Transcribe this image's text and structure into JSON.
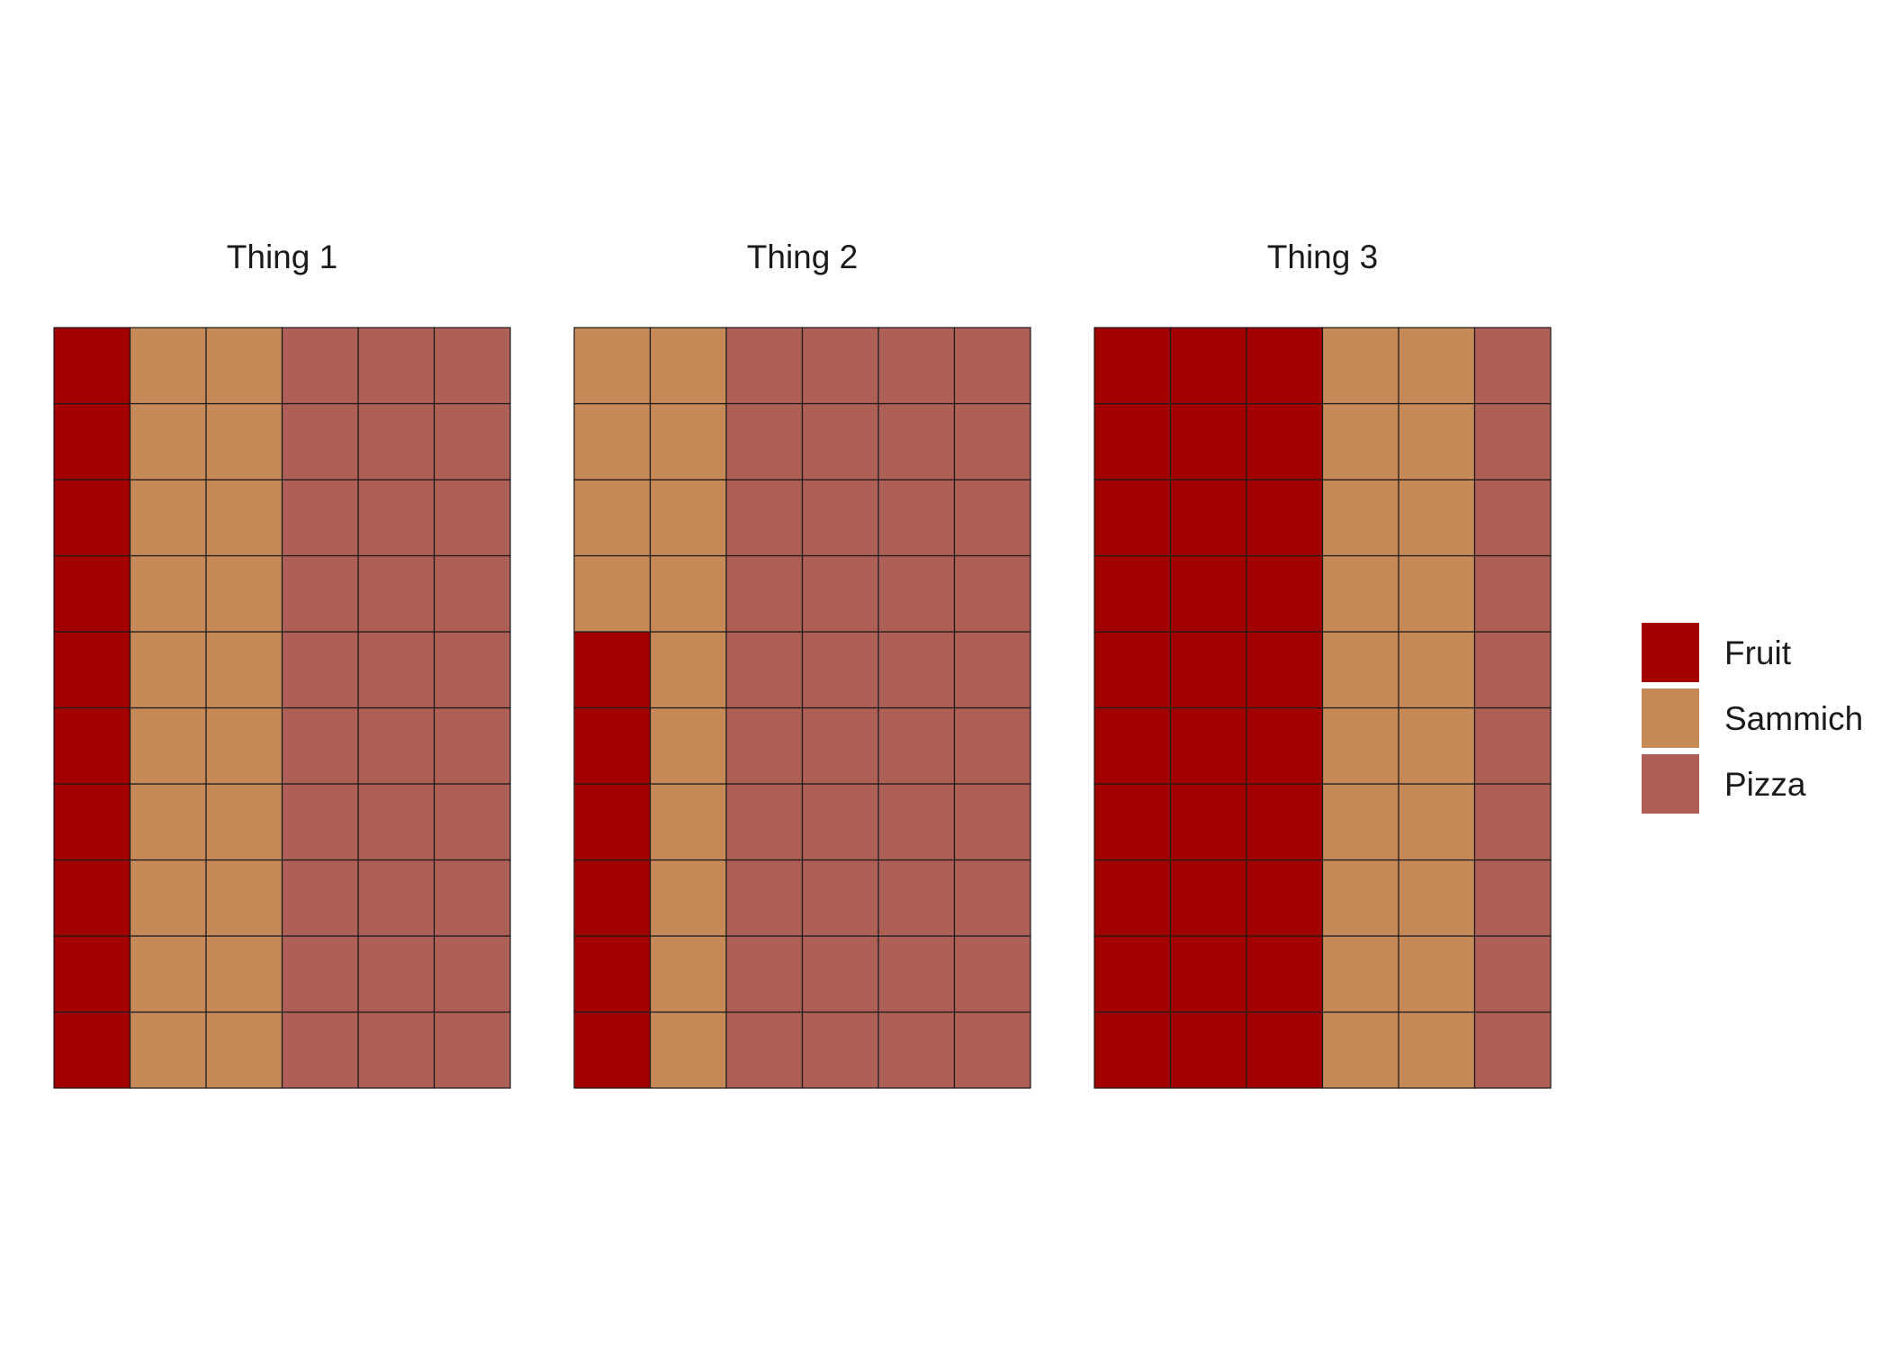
{
  "chart_data": {
    "type": "waffle",
    "rows": 10,
    "columns": 6,
    "categories": [
      "Fruit",
      "Sammich",
      "Pizza"
    ],
    "colors": {
      "Fruit": "#a30000",
      "Sammich": "#c68958",
      "Pizza": "#ae6056"
    },
    "legend_position": "right",
    "grid": false,
    "panels": [
      {
        "title": "Thing 1",
        "values": {
          "Fruit": 10,
          "Sammich": 20,
          "Pizza": 30
        }
      },
      {
        "title": "Thing 2",
        "values": {
          "Fruit": 6,
          "Sammich": 14,
          "Pizza": 40
        }
      },
      {
        "title": "Thing 3",
        "values": {
          "Fruit": 30,
          "Sammich": 20,
          "Pizza": 10
        }
      }
    ]
  }
}
